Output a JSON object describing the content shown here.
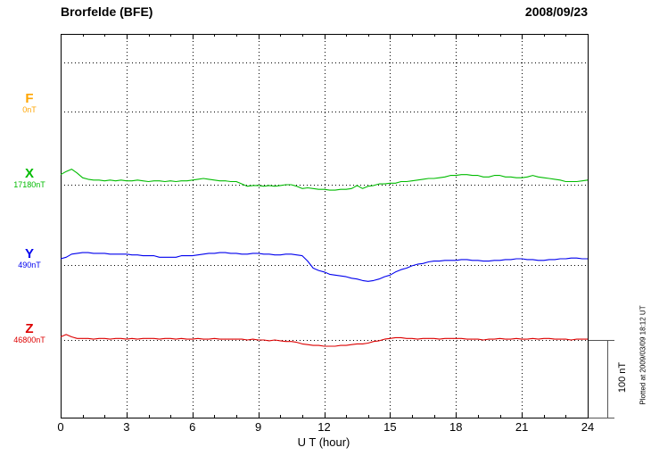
{
  "header": {
    "title": "Brorfelde (BFE)",
    "date": "2008/09/23"
  },
  "footer_note": "Plotted at 2009/03/09 18:12 UT",
  "xaxis": {
    "label": "U T (hour)",
    "range": [
      0,
      24
    ],
    "minor_step": 1,
    "ticks": [
      0,
      3,
      6,
      9,
      12,
      15,
      18,
      21,
      24
    ]
  },
  "scale_bar": {
    "label": "100 nT",
    "nT": 100
  },
  "components": [
    {
      "id": "F",
      "label": "F",
      "baseline_label": "0nT",
      "baseline_nT": 0,
      "color": "#FFA500"
    },
    {
      "id": "X",
      "label": "X",
      "baseline_label": "17180nT",
      "baseline_nT": 17180,
      "color": "#00BB00"
    },
    {
      "id": "Y",
      "label": "Y",
      "baseline_label": "490nT",
      "baseline_nT": 490,
      "color": "#0000EE"
    },
    {
      "id": "Z",
      "label": "Z",
      "baseline_label": "46800nT",
      "baseline_nT": 46800,
      "color": "#DD0000"
    }
  ],
  "chart_data": {
    "type": "line",
    "title": "Brorfelde (BFE) magnetogram 2008/09/23",
    "xlabel": "U T (hour)",
    "ylabel": "",
    "x_range_hours": [
      0,
      24
    ],
    "x_step_hours": 0.25,
    "grid": "dotted",
    "legend_position": "left-margin",
    "scale_nT_per_division": 100,
    "series": [
      {
        "name": "F",
        "baseline_nT": 0,
        "offsets_nT": []
      },
      {
        "name": "X",
        "baseline_nT": 17180,
        "offsets_nT": [
          13,
          17,
          20,
          15,
          9,
          7,
          6,
          6,
          5,
          6,
          5,
          6,
          5,
          5,
          6,
          5,
          4,
          5,
          5,
          4,
          5,
          4,
          5,
          5,
          6,
          7,
          8,
          7,
          6,
          5,
          5,
          4,
          4,
          1,
          -2,
          -1,
          -1,
          -2,
          -1,
          -2,
          -1,
          0,
          0,
          -2,
          -5,
          -4,
          -5,
          -6,
          -6,
          -7,
          -7,
          -6,
          -6,
          -5,
          -1,
          -5,
          -2,
          -1,
          1,
          1,
          2,
          2,
          4,
          4,
          5,
          6,
          7,
          8,
          8,
          9,
          10,
          12,
          12,
          13,
          13,
          12,
          12,
          10,
          10,
          12,
          12,
          10,
          10,
          9,
          9,
          10,
          12,
          10,
          9,
          8,
          7,
          6,
          4,
          4,
          4,
          5,
          6
        ]
      },
      {
        "name": "Y",
        "baseline_nT": 490,
        "offsets_nT": [
          8,
          10,
          14,
          15,
          16,
          16,
          15,
          15,
          15,
          14,
          14,
          14,
          14,
          13,
          13,
          12,
          12,
          12,
          10,
          10,
          10,
          10,
          12,
          12,
          12,
          13,
          14,
          15,
          15,
          16,
          16,
          15,
          15,
          14,
          14,
          15,
          15,
          14,
          14,
          13,
          13,
          14,
          14,
          13,
          12,
          5,
          -4,
          -7,
          -9,
          -12,
          -13,
          -14,
          -15,
          -17,
          -18,
          -20,
          -21,
          -20,
          -18,
          -15,
          -13,
          -9,
          -6,
          -4,
          -1,
          1,
          2,
          4,
          5,
          5,
          6,
          6,
          6,
          7,
          7,
          6,
          6,
          5,
          5,
          6,
          6,
          7,
          7,
          8,
          8,
          7,
          7,
          6,
          6,
          7,
          7,
          8,
          8,
          9,
          9,
          8,
          8
        ]
      },
      {
        "name": "Z",
        "baseline_nT": 46800,
        "offsets_nT": [
          4,
          7,
          4,
          2,
          2,
          2,
          1,
          2,
          2,
          1,
          2,
          2,
          1,
          2,
          1,
          2,
          2,
          2,
          1,
          2,
          2,
          1,
          2,
          1,
          1,
          2,
          1,
          1,
          2,
          1,
          1,
          1,
          1,
          1,
          0,
          1,
          0,
          0,
          -1,
          0,
          -1,
          -2,
          -2,
          -3,
          -5,
          -6,
          -7,
          -7,
          -8,
          -8,
          -8,
          -7,
          -7,
          -6,
          -5,
          -5,
          -4,
          -2,
          -1,
          1,
          2,
          3,
          3,
          2,
          2,
          1,
          2,
          2,
          2,
          1,
          2,
          2,
          2,
          2,
          1,
          1,
          1,
          0,
          1,
          1,
          2,
          1,
          1,
          2,
          1,
          1,
          2,
          1,
          2,
          2,
          1,
          1,
          1,
          0,
          1,
          1,
          1
        ]
      }
    ]
  }
}
